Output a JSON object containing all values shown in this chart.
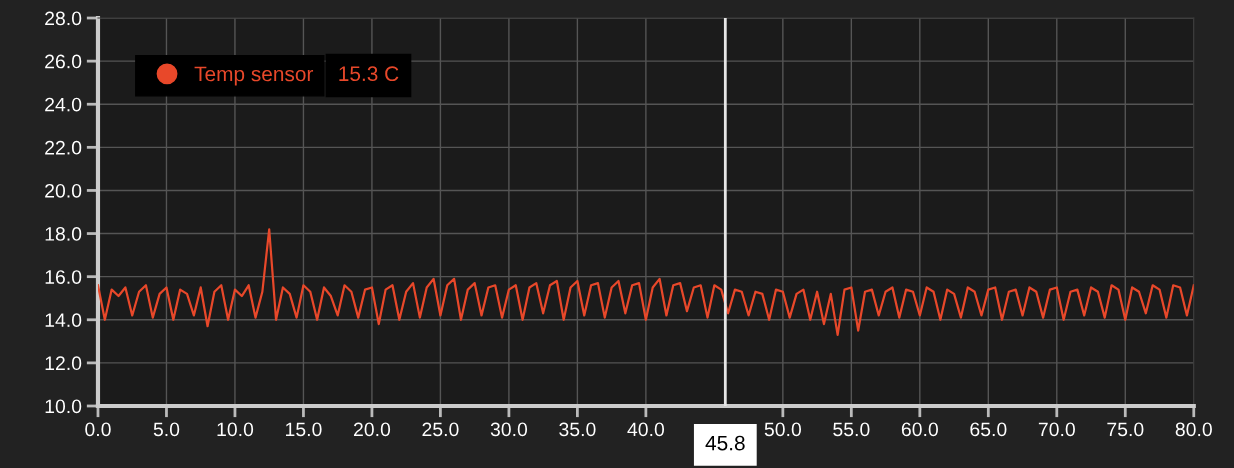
{
  "chart_data": {
    "type": "line",
    "x": [
      0,
      0.5,
      1,
      1.5,
      2,
      2.5,
      3,
      3.5,
      4,
      4.5,
      5,
      5.5,
      6,
      6.5,
      7,
      7.5,
      8,
      8.5,
      9,
      9.5,
      10,
      10.5,
      11,
      11.5,
      12,
      12.5,
      13,
      13.5,
      14,
      14.5,
      15,
      15.5,
      16,
      16.5,
      17,
      17.5,
      18,
      18.5,
      19,
      19.5,
      20,
      20.5,
      21,
      21.5,
      22,
      22.5,
      23,
      23.5,
      24,
      24.5,
      25,
      25.5,
      26,
      26.5,
      27,
      27.5,
      28,
      28.5,
      29,
      29.5,
      30,
      30.5,
      31,
      31.5,
      32,
      32.5,
      33,
      33.5,
      34,
      34.5,
      35,
      35.5,
      36,
      36.5,
      37,
      37.5,
      38,
      38.5,
      39,
      39.5,
      40,
      40.5,
      41,
      41.5,
      42,
      42.5,
      43,
      43.5,
      44,
      44.5,
      45,
      45.5,
      46,
      46.5,
      47,
      47.5,
      48,
      48.5,
      49,
      49.5,
      50,
      50.5,
      51,
      51.5,
      52,
      52.5,
      53,
      53.5,
      54,
      54.5,
      55,
      55.5,
      56,
      56.5,
      57,
      57.5,
      58,
      58.5,
      59,
      59.5,
      60,
      60.5,
      61,
      61.5,
      62,
      62.5,
      63,
      63.5,
      64,
      64.5,
      65,
      65.5,
      66,
      66.5,
      67,
      67.5,
      68,
      68.5,
      69,
      69.5,
      70,
      70.5,
      71,
      71.5,
      72,
      72.5,
      73,
      73.5,
      74,
      74.5,
      75,
      75.5,
      76,
      76.5,
      77,
      77.5,
      78,
      78.5,
      79,
      79.5,
      80
    ],
    "series": [
      {
        "name": "Temp sensor",
        "color": "#e8482a",
        "values": [
          15.6,
          14.0,
          15.4,
          15.1,
          15.5,
          14.2,
          15.3,
          15.6,
          14.1,
          15.2,
          15.5,
          14.0,
          15.4,
          15.2,
          14.2,
          15.5,
          13.7,
          15.3,
          15.6,
          14.0,
          15.4,
          15.1,
          15.6,
          14.1,
          15.3,
          18.2,
          14.0,
          15.5,
          15.2,
          14.1,
          15.6,
          15.3,
          14.0,
          15.5,
          15.1,
          14.2,
          15.6,
          15.3,
          14.1,
          15.4,
          15.5,
          13.8,
          15.4,
          15.6,
          14.0,
          15.3,
          15.7,
          14.1,
          15.5,
          15.9,
          14.2,
          15.6,
          15.9,
          14.0,
          15.4,
          15.7,
          14.2,
          15.5,
          15.6,
          14.1,
          15.4,
          15.6,
          14.0,
          15.5,
          15.7,
          14.3,
          15.6,
          15.8,
          14.0,
          15.5,
          15.8,
          14.2,
          15.6,
          15.7,
          14.1,
          15.5,
          15.8,
          14.3,
          15.6,
          15.7,
          14.0,
          15.5,
          15.9,
          14.2,
          15.6,
          15.7,
          14.4,
          15.5,
          15.6,
          14.1,
          15.6,
          15.4,
          14.3,
          15.4,
          15.3,
          14.2,
          15.3,
          15.2,
          14.0,
          15.4,
          15.3,
          14.1,
          15.2,
          15.4,
          14.0,
          15.3,
          13.8,
          15.2,
          13.3,
          15.4,
          15.5,
          13.5,
          15.3,
          15.4,
          14.2,
          15.3,
          15.5,
          14.1,
          15.4,
          15.3,
          14.2,
          15.5,
          15.3,
          14.0,
          15.4,
          15.2,
          14.1,
          15.5,
          15.3,
          14.2,
          15.4,
          15.5,
          14.0,
          15.3,
          15.4,
          14.2,
          15.5,
          15.3,
          14.1,
          15.4,
          15.5,
          14.0,
          15.3,
          15.4,
          14.2,
          15.5,
          15.3,
          14.1,
          15.6,
          15.4,
          14.0,
          15.5,
          15.3,
          14.3,
          15.6,
          15.4,
          14.1,
          15.6,
          15.5,
          14.2,
          15.6
        ]
      }
    ],
    "xlim": [
      0,
      80
    ],
    "ylim": [
      10,
      28
    ],
    "xticks": [
      {
        "value": 0,
        "label": "0.0"
      },
      {
        "value": 5,
        "label": "5.0"
      },
      {
        "value": 10,
        "label": "10.0"
      },
      {
        "value": 15,
        "label": "15.0"
      },
      {
        "value": 20,
        "label": "20.0"
      },
      {
        "value": 25,
        "label": "25.0"
      },
      {
        "value": 30,
        "label": "30.0"
      },
      {
        "value": 35,
        "label": "35.0"
      },
      {
        "value": 40,
        "label": "40.0"
      },
      {
        "value": 50,
        "label": "50.0"
      },
      {
        "value": 55,
        "label": "55.0"
      },
      {
        "value": 60,
        "label": "60.0"
      },
      {
        "value": 65,
        "label": "65.0"
      },
      {
        "value": 70,
        "label": "70.0"
      },
      {
        "value": 75,
        "label": "75.0"
      },
      {
        "value": 80,
        "label": "80.0"
      }
    ],
    "yticks": [
      {
        "value": 10,
        "label": "10.0"
      },
      {
        "value": 12,
        "label": "12.0"
      },
      {
        "value": 14,
        "label": "14.0"
      },
      {
        "value": 16,
        "label": "16.0"
      },
      {
        "value": 18,
        "label": "18.0"
      },
      {
        "value": 20,
        "label": "20.0"
      },
      {
        "value": 22,
        "label": "22.0"
      },
      {
        "value": 24,
        "label": "24.0"
      },
      {
        "value": 26,
        "label": "26.0"
      },
      {
        "value": 28,
        "label": "28.0"
      }
    ],
    "ref_lines": [
      {
        "axis": "x",
        "value": 45.8,
        "label": "45.8",
        "color": "#e6e6e6"
      }
    ],
    "annotations": [
      "15.3 C"
    ],
    "grid": true,
    "legend": "top left",
    "marker": "none",
    "line_style": "solid"
  }
}
